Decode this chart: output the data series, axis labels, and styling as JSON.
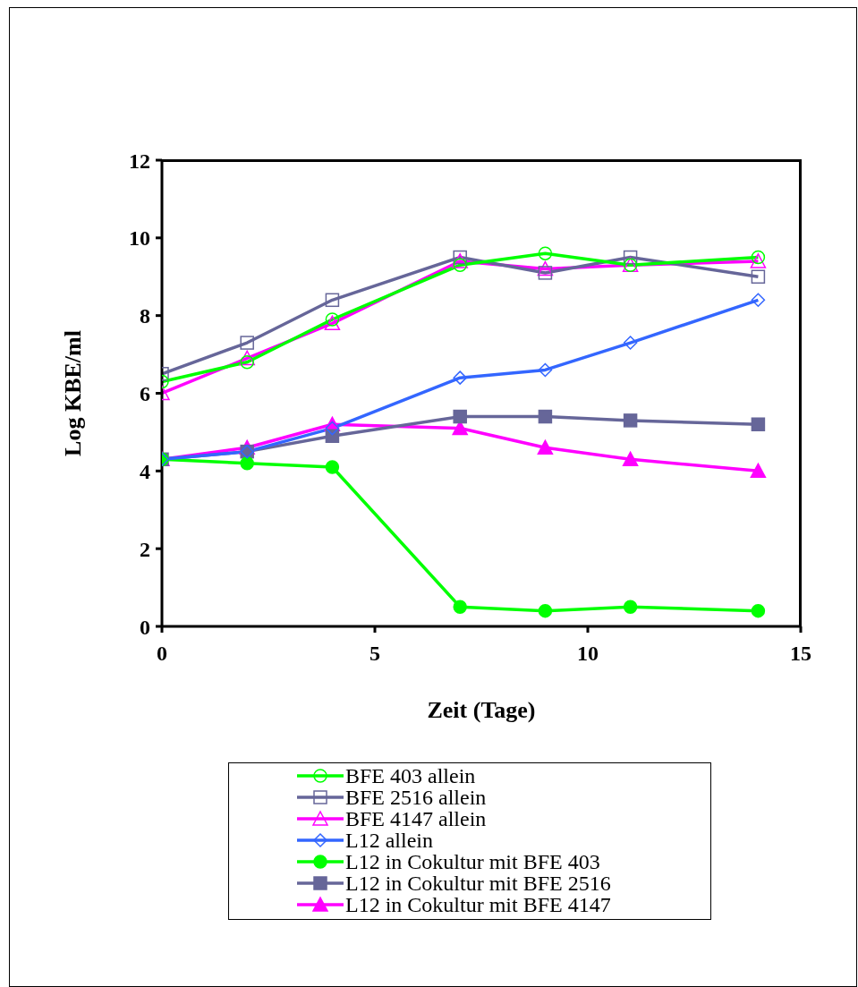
{
  "chart_data": {
    "type": "line",
    "xlabel": "Zeit (Tage)",
    "ylabel": "Log KBE/ml",
    "x": [
      0,
      2,
      4,
      7,
      9,
      11,
      14
    ],
    "xlim": [
      0,
      15
    ],
    "xticks": [
      0,
      5,
      10,
      15
    ],
    "ylim": [
      0,
      12
    ],
    "yticks": [
      0,
      2,
      4,
      6,
      8,
      10,
      12
    ],
    "grid": false,
    "legend": "bottom",
    "line_style": "solid",
    "series": [
      {
        "name": "BFE 403 allein",
        "color": "#00ff00",
        "marker": "circle",
        "values": [
          6.3,
          6.8,
          7.9,
          9.3,
          9.6,
          9.3,
          9.5
        ]
      },
      {
        "name": "BFE 2516 allein",
        "color": "#666699",
        "marker": "square",
        "values": [
          6.5,
          7.3,
          8.4,
          9.5,
          9.1,
          9.5,
          9.0
        ]
      },
      {
        "name": "BFE 4147 allein",
        "color": "#ff00ff",
        "marker": "triangle",
        "values": [
          6.0,
          6.9,
          7.8,
          9.4,
          9.2,
          9.3,
          9.4
        ]
      },
      {
        "name": "L12 allein",
        "color": "#3366ff",
        "marker": "diamond",
        "values": [
          4.3,
          4.5,
          5.1,
          6.4,
          6.6,
          7.3,
          8.4
        ]
      },
      {
        "name": "L12 in Cokultur mit BFE 403",
        "color": "#00ff00",
        "marker": "circle",
        "values": [
          4.3,
          4.2,
          4.1,
          0.5,
          0.4,
          0.5,
          0.4
        ]
      },
      {
        "name": "L12 in Cokultur mit BFE 2516",
        "color": "#666699",
        "marker": "square",
        "values": [
          4.3,
          4.5,
          4.9,
          5.4,
          5.4,
          5.3,
          5.2
        ]
      },
      {
        "name": "L12 in Cokultur mit BFE 4147",
        "color": "#ff00ff",
        "marker": "triangle",
        "values": [
          4.3,
          4.6,
          5.2,
          5.1,
          4.6,
          4.3,
          4.0
        ]
      }
    ]
  }
}
